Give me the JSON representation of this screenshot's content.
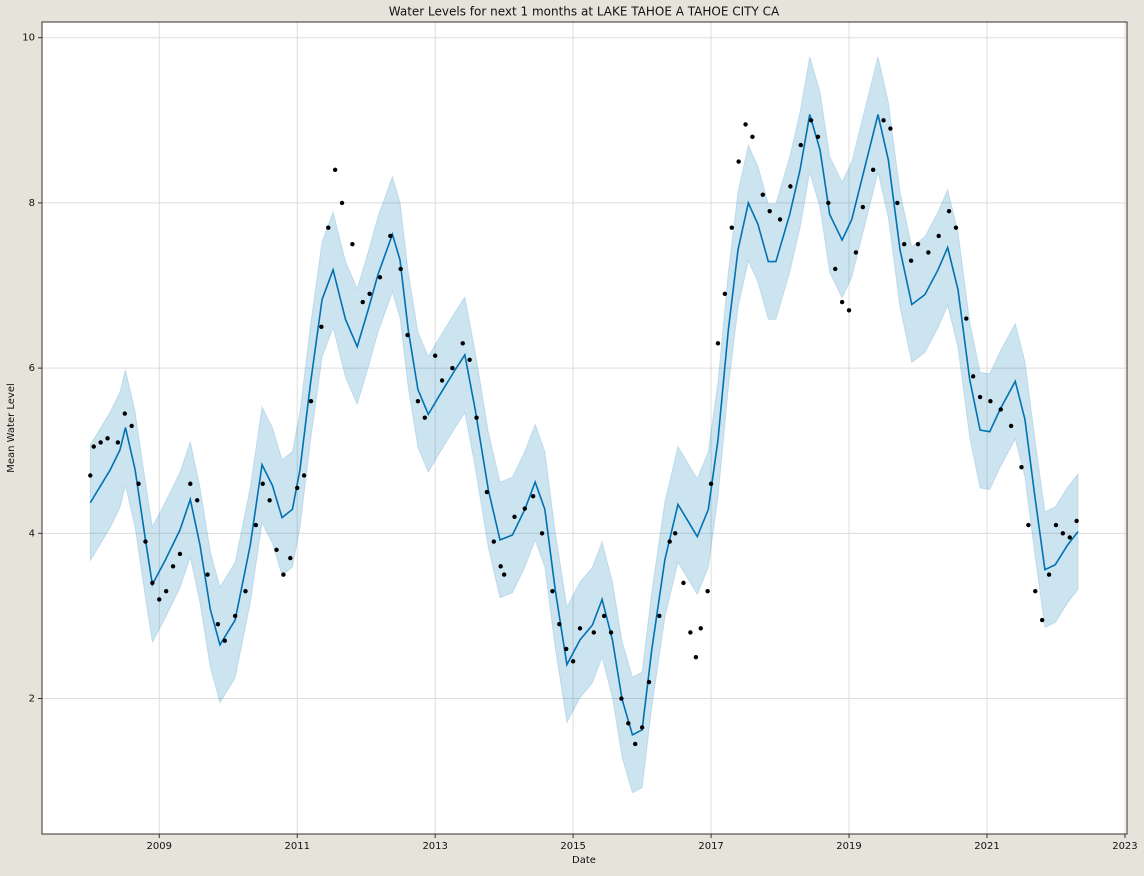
{
  "chart_data": {
    "type": "forecast",
    "title": "Water Levels for next 1 months at LAKE TAHOE A TAHOE CITY CA",
    "x_label": "Date",
    "y_label": "Mean Water Level",
    "xlim": [
      2007.3,
      2023.03
    ],
    "ylim": [
      0.36,
      10.19
    ],
    "xticks": [
      2009,
      2011,
      2013,
      2015,
      2017,
      2019,
      2021,
      2023
    ],
    "yticks": [
      2,
      4,
      6,
      8,
      10
    ],
    "grid": true,
    "forecast": {
      "color": "#0072b2",
      "x": [
        2008.0,
        2008.29,
        2008.43,
        2008.51,
        2008.65,
        2008.8,
        2008.9,
        2009.09,
        2009.3,
        2009.45,
        2009.59,
        2009.74,
        2009.88,
        2010.1,
        2010.32,
        2010.49,
        2010.64,
        2010.78,
        2010.93,
        2011.04,
        2011.19,
        2011.36,
        2011.52,
        2011.7,
        2011.87,
        2012.03,
        2012.17,
        2012.38,
        2012.49,
        2012.61,
        2012.75,
        2012.9,
        2013.07,
        2013.29,
        2013.43,
        2013.58,
        2013.77,
        2013.94,
        2014.12,
        2014.3,
        2014.45,
        2014.59,
        2014.74,
        2014.91,
        2015.1,
        2015.28,
        2015.42,
        2015.57,
        2015.71,
        2015.86,
        2016.0,
        2016.14,
        2016.33,
        2016.52,
        2016.7,
        2016.8,
        2016.96,
        2017.1,
        2017.25,
        2017.39,
        2017.54,
        2017.68,
        2017.83,
        2017.94,
        2018.14,
        2018.29,
        2018.43,
        2018.58,
        2018.72,
        2018.9,
        2019.04,
        2019.22,
        2019.42,
        2019.57,
        2019.74,
        2019.91,
        2020.1,
        2020.29,
        2020.43,
        2020.58,
        2020.75,
        2020.9,
        2021.04,
        2021.19,
        2021.41,
        2021.55,
        2021.7,
        2021.84,
        2021.99,
        2022.17,
        2022.32
      ],
      "values": [
        4.37,
        4.77,
        5.01,
        5.28,
        4.77,
        3.92,
        3.38,
        3.68,
        4.04,
        4.41,
        3.86,
        3.08,
        2.65,
        2.95,
        3.86,
        4.83,
        4.58,
        4.19,
        4.29,
        4.77,
        5.8,
        6.83,
        7.19,
        6.59,
        6.26,
        6.71,
        7.13,
        7.62,
        7.31,
        6.46,
        5.74,
        5.44,
        5.68,
        5.98,
        6.16,
        5.5,
        4.53,
        3.92,
        3.98,
        4.29,
        4.62,
        4.29,
        3.32,
        2.41,
        2.71,
        2.89,
        3.2,
        2.71,
        1.99,
        1.56,
        1.62,
        2.59,
        3.68,
        4.35,
        4.1,
        3.96,
        4.29,
        5.13,
        6.46,
        7.43,
        8.0,
        7.74,
        7.29,
        7.29,
        7.86,
        8.4,
        9.07,
        8.64,
        7.86,
        7.55,
        7.8,
        8.4,
        9.07,
        8.52,
        7.43,
        6.77,
        6.89,
        7.19,
        7.46,
        6.95,
        5.86,
        5.25,
        5.23,
        5.5,
        5.84,
        5.38,
        4.41,
        3.56,
        3.62,
        3.86,
        4.02
      ],
      "upper": [
        5.07,
        5.47,
        5.71,
        5.98,
        5.47,
        4.62,
        4.08,
        4.38,
        4.74,
        5.11,
        4.56,
        3.78,
        3.35,
        3.65,
        4.56,
        5.53,
        5.28,
        4.89,
        4.99,
        5.47,
        6.5,
        7.53,
        7.89,
        7.29,
        6.96,
        7.41,
        7.83,
        8.32,
        8.01,
        7.16,
        6.44,
        6.14,
        6.38,
        6.68,
        6.86,
        6.2,
        5.23,
        4.62,
        4.68,
        4.99,
        5.32,
        4.99,
        4.02,
        3.11,
        3.41,
        3.59,
        3.9,
        3.41,
        2.69,
        2.26,
        2.32,
        3.29,
        4.38,
        5.05,
        4.8,
        4.66,
        4.99,
        5.83,
        7.16,
        8.13,
        8.7,
        8.44,
        7.99,
        7.99,
        8.56,
        9.1,
        9.77,
        9.34,
        8.56,
        8.25,
        8.5,
        9.1,
        9.77,
        9.22,
        8.13,
        7.47,
        7.59,
        7.89,
        8.16,
        7.65,
        6.56,
        5.95,
        5.93,
        6.2,
        6.54,
        6.08,
        5.11,
        4.26,
        4.32,
        4.56,
        4.72
      ],
      "lower": [
        3.67,
        4.07,
        4.31,
        4.58,
        4.07,
        3.22,
        2.68,
        2.98,
        3.34,
        3.71,
        3.16,
        2.38,
        1.95,
        2.25,
        3.16,
        4.13,
        3.88,
        3.49,
        3.59,
        4.07,
        5.1,
        6.13,
        6.49,
        5.89,
        5.56,
        6.01,
        6.43,
        6.92,
        6.61,
        5.76,
        5.04,
        4.74,
        4.98,
        5.28,
        5.46,
        4.8,
        3.83,
        3.22,
        3.28,
        3.59,
        3.92,
        3.59,
        2.62,
        1.71,
        2.01,
        2.19,
        2.5,
        2.01,
        1.29,
        0.86,
        0.92,
        1.89,
        2.98,
        3.65,
        3.4,
        3.26,
        3.59,
        4.43,
        5.76,
        6.73,
        7.3,
        7.04,
        6.59,
        6.59,
        7.16,
        7.7,
        8.37,
        7.94,
        7.16,
        6.85,
        7.1,
        7.7,
        8.37,
        7.82,
        6.73,
        6.07,
        6.19,
        6.49,
        6.76,
        6.25,
        5.16,
        4.55,
        4.53,
        4.8,
        5.14,
        4.68,
        3.71,
        2.86,
        2.92,
        3.16,
        3.32
      ]
    },
    "observed": {
      "color": "#000000",
      "x": [
        2008.0,
        2008.05,
        2008.15,
        2008.25,
        2008.4,
        2008.5,
        2008.6,
        2008.7,
        2008.8,
        2008.9,
        2009.0,
        2009.1,
        2009.2,
        2009.3,
        2009.45,
        2009.55,
        2009.7,
        2009.85,
        2009.95,
        2010.1,
        2010.25,
        2010.4,
        2010.5,
        2010.6,
        2010.7,
        2010.8,
        2010.9,
        2011.0,
        2011.1,
        2011.2,
        2011.35,
        2011.45,
        2011.55,
        2011.65,
        2011.8,
        2011.95,
        2012.05,
        2012.2,
        2012.35,
        2012.5,
        2012.6,
        2012.75,
        2012.85,
        2013.0,
        2013.1,
        2013.25,
        2013.4,
        2013.5,
        2013.6,
        2013.75,
        2013.85,
        2013.95,
        2014.0,
        2014.15,
        2014.3,
        2014.42,
        2014.55,
        2014.7,
        2014.8,
        2014.9,
        2015.0,
        2015.1,
        2015.3,
        2015.45,
        2015.55,
        2015.7,
        2015.8,
        2015.9,
        2016.0,
        2016.1,
        2016.25,
        2016.4,
        2016.48,
        2016.6,
        2016.7,
        2016.78,
        2016.85,
        2016.95,
        2017.0,
        2017.1,
        2017.2,
        2017.3,
        2017.4,
        2017.5,
        2017.6,
        2017.75,
        2017.85,
        2018.0,
        2018.15,
        2018.3,
        2018.45,
        2018.55,
        2018.7,
        2018.8,
        2018.9,
        2019.0,
        2019.1,
        2019.2,
        2019.35,
        2019.5,
        2019.6,
        2019.7,
        2019.8,
        2019.9,
        2020.0,
        2020.15,
        2020.3,
        2020.45,
        2020.55,
        2020.7,
        2020.8,
        2020.9,
        2021.05,
        2021.2,
        2021.35,
        2021.5,
        2021.6,
        2021.7,
        2021.8,
        2021.9,
        2022.0,
        2022.1,
        2022.2,
        2022.3
      ],
      "values": [
        4.7,
        5.05,
        5.1,
        5.15,
        5.1,
        5.45,
        5.3,
        4.6,
        3.9,
        3.4,
        3.2,
        3.3,
        3.6,
        3.75,
        4.6,
        4.4,
        3.5,
        2.9,
        2.7,
        3.0,
        3.3,
        4.1,
        4.6,
        4.4,
        3.8,
        3.5,
        3.7,
        4.55,
        4.7,
        5.6,
        6.5,
        7.7,
        8.4,
        8.0,
        7.5,
        6.8,
        6.9,
        7.1,
        7.6,
        7.2,
        6.4,
        5.6,
        5.4,
        6.15,
        5.85,
        6.0,
        6.3,
        6.1,
        5.4,
        4.5,
        3.9,
        3.6,
        3.5,
        4.2,
        4.3,
        4.45,
        4.0,
        3.3,
        2.9,
        2.6,
        2.45,
        2.85,
        2.8,
        3.0,
        2.8,
        2.0,
        1.7,
        1.45,
        1.65,
        2.2,
        3.0,
        3.9,
        4.0,
        3.4,
        2.8,
        2.5,
        2.85,
        3.3,
        4.6,
        6.3,
        6.9,
        7.7,
        8.5,
        8.95,
        8.8,
        8.1,
        7.9,
        7.8,
        8.2,
        8.7,
        9.0,
        8.8,
        8.0,
        7.2,
        6.8,
        6.7,
        7.4,
        7.95,
        8.4,
        9.0,
        8.9,
        8.0,
        7.5,
        7.3,
        7.5,
        7.4,
        7.6,
        7.9,
        7.7,
        6.6,
        5.9,
        5.65,
        5.6,
        5.5,
        5.3,
        4.8,
        4.1,
        3.3,
        2.95,
        3.5,
        4.1,
        4.0,
        3.95,
        4.15
      ]
    }
  }
}
